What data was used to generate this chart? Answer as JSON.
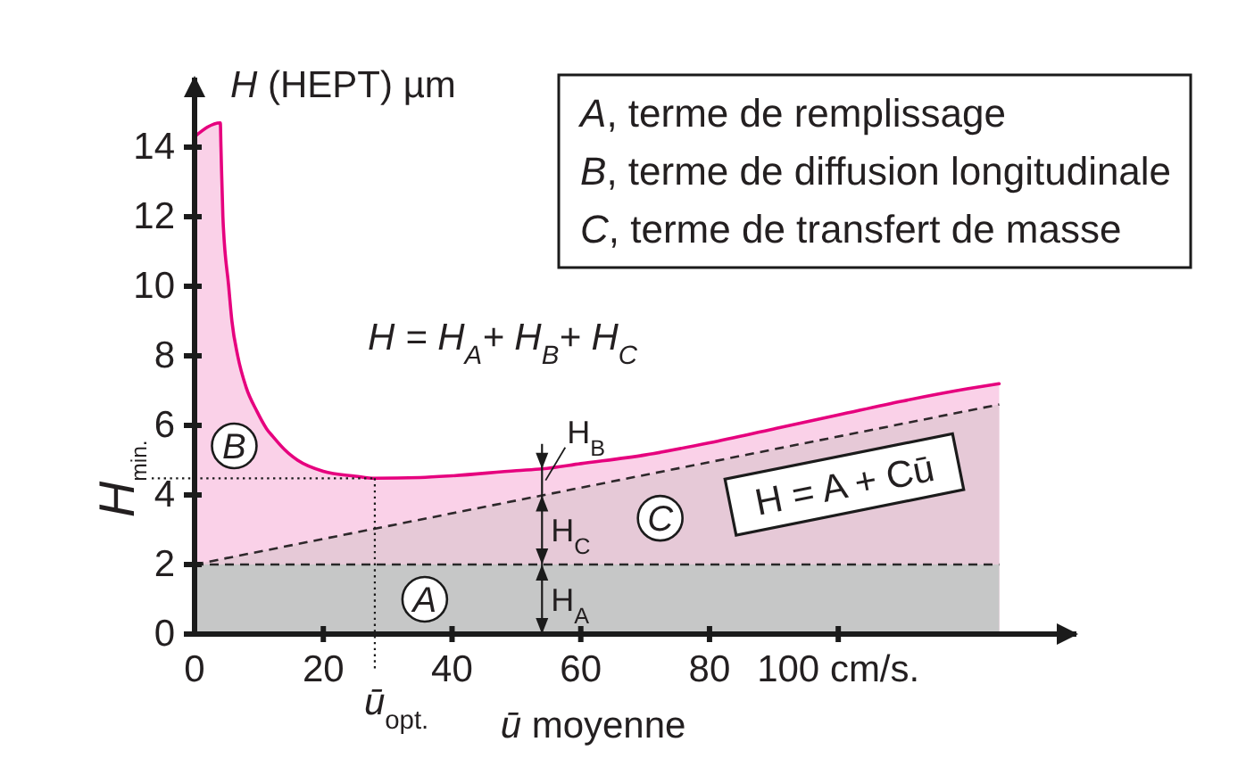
{
  "chart_data": {
    "type": "area",
    "xlabel": "ū moyenne",
    "ylabel": "H (HEPT) µm",
    "xlim": [
      0,
      137
    ],
    "ylim": [
      0,
      16
    ],
    "xticks": [
      0,
      20,
      40,
      60,
      80,
      {
        "value": 100,
        "label": "100 cm/s."
      }
    ],
    "yticks": [
      0,
      2,
      4,
      6,
      8,
      10,
      12,
      14
    ],
    "legend": false,
    "series": [
      {
        "name": "B",
        "color": "#e6007e",
        "x": [
          0,
          4.0,
          4.1,
          4.4,
          5.3,
          5.8,
          6.7,
          8.0,
          9.7,
          11.2,
          12.3,
          14,
          16,
          20,
          25,
          28,
          35,
          40,
          50,
          54,
          60,
          70,
          80,
          90,
          100,
          110,
          120,
          125
        ],
        "values": [
          14.3,
          14.7,
          14,
          12,
          10,
          9,
          8,
          7.1,
          6.4,
          5.9,
          5.65,
          5.3,
          5.0,
          4.68,
          4.54,
          4.48,
          4.5,
          4.55,
          4.7,
          4.75,
          4.9,
          5.15,
          5.5,
          5.9,
          6.3,
          6.7,
          7.05,
          7.2
        ]
      },
      {
        "name": "C",
        "color": "#e6c9d7",
        "line_style": "dashed",
        "x": [
          0,
          125
        ],
        "values": [
          2,
          6.6
        ]
      },
      {
        "name": "A",
        "color": "#c6c7c7",
        "line_style": "dashed",
        "x": [
          0,
          125
        ],
        "values": [
          2,
          2
        ]
      }
    ],
    "ref_lines": [
      {
        "axis": "y",
        "value": 4.48,
        "label": "H$_{min.}$",
        "line_style": "dotted"
      },
      {
        "axis": "x",
        "value": 28,
        "label": "ū$_{opt.}$",
        "line_style": "dotted"
      }
    ],
    "annotations": [
      "A, terme de remplissage",
      "B, terme de diffusion longitudinale",
      "C, terme de transfert de masse",
      "H = H$_{A}$+ H$_{B}$+ H$_{C}$",
      "H = A + Cū",
      "H$_{A}$",
      "H$_{C}$",
      "H$_{B}$"
    ]
  }
}
